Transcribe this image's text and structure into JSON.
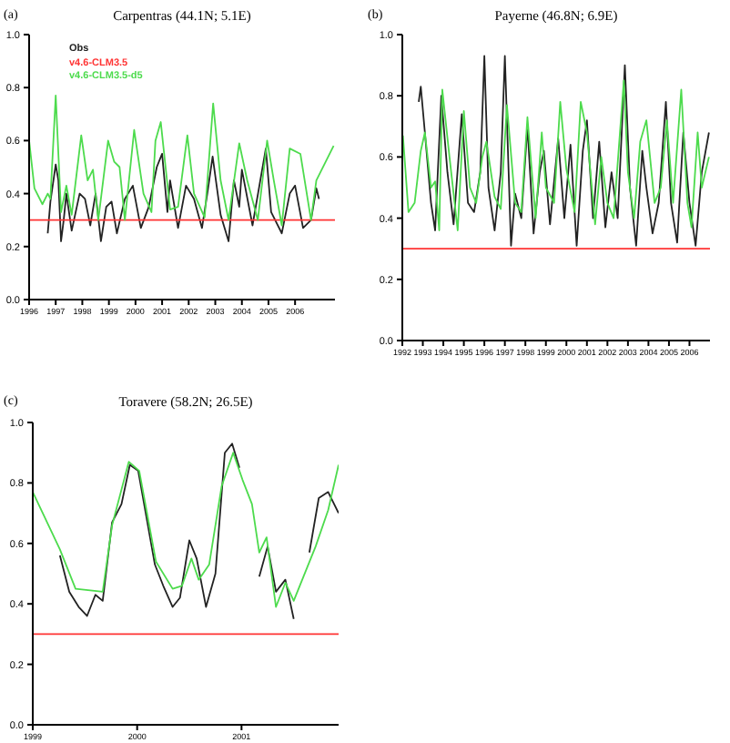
{
  "chart_data": [
    {
      "type": "line",
      "title": "Carpentras (44.1N; 5.1E)",
      "annotations": [
        "(a)"
      ],
      "legend": "top left",
      "xlim": [
        1996,
        2007.5
      ],
      "xticks": [
        1996,
        1997,
        1998,
        1999,
        2000,
        2001,
        2002,
        2003,
        2004,
        2005,
        2006
      ],
      "ylim": [
        0,
        1
      ],
      "yticks": [
        {
          "value": 0,
          "label": "0.0"
        },
        {
          "value": 0.2,
          "label": "0.2"
        },
        {
          "value": 0.4,
          "label": "0.4"
        },
        {
          "value": 0.6,
          "label": "0.6"
        },
        {
          "value": 0.8,
          "label": "0.8"
        },
        {
          "value": 1,
          "label": "1.0"
        }
      ],
      "series": [
        {
          "name": "Obs",
          "color": "#222222",
          "x": [
            1996.7,
            1996.8,
            1997.0,
            1997.1,
            1997.2,
            1997.3,
            1997.4,
            1997.6,
            1997.9,
            1998.1,
            1998.3,
            1998.5,
            1998.7,
            1998.9,
            1999.1,
            1999.3,
            1999.6,
            1999.9,
            2000.2,
            2000.5,
            2000.8,
            2001.0,
            2001.2,
            2001.3,
            2001.6,
            2001.9,
            2002.2,
            2002.5,
            2002.7,
            2002.9,
            2003.2,
            2003.5,
            2003.7,
            2003.9,
            2004.0,
            2004.4,
            2004.9,
            2005.1,
            2005.5,
            2005.8,
            2006.0,
            2006.3,
            2006.6,
            2006.8,
            2006.9
          ],
          "values": [
            0.25,
            0.37,
            0.51,
            0.45,
            0.22,
            0.3,
            0.4,
            0.26,
            0.4,
            0.38,
            0.28,
            0.4,
            0.22,
            0.35,
            0.37,
            0.25,
            0.38,
            0.43,
            0.27,
            0.35,
            0.5,
            0.55,
            0.33,
            0.45,
            0.27,
            0.43,
            0.38,
            0.27,
            0.4,
            0.54,
            0.32,
            0.22,
            0.45,
            0.35,
            0.49,
            0.28,
            0.57,
            0.33,
            0.25,
            0.4,
            0.43,
            0.27,
            0.3,
            0.42,
            0.38
          ]
        },
        {
          "name": "v4.6-CLM3.5",
          "color": "#ff3333",
          "x": [
            1996,
            2007.5
          ],
          "values": [
            0.3,
            0.3
          ]
        },
        {
          "name": "v4.6-CLM3.5-d5",
          "color": "#4ddb4d",
          "x": [
            1996.0,
            1996.2,
            1996.5,
            1996.7,
            1996.8,
            1997.0,
            1997.2,
            1997.4,
            1997.6,
            1997.96,
            1998.2,
            1998.4,
            1998.6,
            1998.97,
            1999.2,
            1999.4,
            1999.6,
            1999.95,
            2000.3,
            2000.6,
            2000.75,
            2000.95,
            2001.3,
            2001.6,
            2001.95,
            2002.2,
            2002.6,
            2002.92,
            2003.2,
            2003.5,
            2003.9,
            2004.2,
            2004.6,
            2004.95,
            2005.2,
            2005.5,
            2005.8,
            2006.2,
            2006.6,
            2006.8,
            2007.45
          ],
          "values": [
            0.6,
            0.42,
            0.36,
            0.4,
            0.38,
            0.77,
            0.33,
            0.43,
            0.32,
            0.62,
            0.45,
            0.49,
            0.3,
            0.6,
            0.52,
            0.5,
            0.3,
            0.64,
            0.4,
            0.33,
            0.6,
            0.67,
            0.34,
            0.35,
            0.62,
            0.4,
            0.31,
            0.74,
            0.45,
            0.3,
            0.59,
            0.45,
            0.3,
            0.6,
            0.45,
            0.28,
            0.57,
            0.55,
            0.3,
            0.45,
            0.58
          ]
        }
      ]
    },
    {
      "type": "line",
      "title": "Payerne (46.8N; 6.9E)",
      "annotations": [
        "(b)"
      ],
      "xlim": [
        1992,
        2007
      ],
      "xticks": [
        1992,
        1993,
        1994,
        1995,
        1996,
        1997,
        1998,
        1999,
        2000,
        2001,
        2002,
        2003,
        2004,
        2005,
        2006
      ],
      "ylim": [
        0,
        1
      ],
      "yticks": [
        {
          "value": 0,
          "label": "0.0"
        },
        {
          "value": 0.2,
          "label": "0.2"
        },
        {
          "value": 0.4,
          "label": "0.4"
        },
        {
          "value": 0.6,
          "label": "0.6"
        },
        {
          "value": 0.8,
          "label": "0.8"
        },
        {
          "value": 1,
          "label": "1.0"
        }
      ],
      "series": [
        {
          "color": "#222222",
          "x": [
            1992.8,
            1992.9,
            1993.1,
            1993.4,
            1993.6,
            1993.9,
            1994.2,
            1994.5,
            1994.9,
            1995.2,
            1995.5,
            1995.8,
            1996.0,
            1996.2,
            1996.5,
            1996.8,
            1997.0,
            1997.3,
            1997.5,
            1997.8,
            1998.1,
            1998.4,
            1998.7,
            1998.9,
            1999.2,
            1999.6,
            1999.9,
            2000.2,
            2000.5,
            2000.8,
            2001.0,
            2001.3,
            2001.6,
            2001.9,
            2002.2,
            2002.5,
            2002.85,
            2003.1,
            2003.4,
            2003.7,
            2003.9,
            2004.2,
            2004.5,
            2004.85,
            2005.1,
            2005.4,
            2005.7,
            2006.0,
            2006.3,
            2006.6,
            2006.95
          ],
          "values": [
            0.78,
            0.83,
            0.68,
            0.45,
            0.36,
            0.8,
            0.55,
            0.38,
            0.74,
            0.45,
            0.42,
            0.55,
            0.93,
            0.5,
            0.36,
            0.55,
            0.93,
            0.31,
            0.48,
            0.4,
            0.7,
            0.35,
            0.55,
            0.62,
            0.38,
            0.66,
            0.4,
            0.64,
            0.31,
            0.62,
            0.72,
            0.4,
            0.65,
            0.37,
            0.55,
            0.4,
            0.9,
            0.5,
            0.31,
            0.62,
            0.5,
            0.35,
            0.45,
            0.78,
            0.45,
            0.32,
            0.68,
            0.45,
            0.31,
            0.55,
            0.68
          ]
        },
        {
          "color": "#ff3333",
          "x": [
            1992,
            2007
          ],
          "values": [
            0.3,
            0.3
          ]
        },
        {
          "color": "#4ddb4d",
          "x": [
            1992.03,
            1992.3,
            1992.6,
            1992.9,
            1993.1,
            1993.4,
            1993.6,
            1993.8,
            1993.95,
            1994.3,
            1994.7,
            1995.0,
            1995.3,
            1995.6,
            1995.9,
            1996.1,
            1996.5,
            1996.8,
            1997.1,
            1997.5,
            1997.8,
            1998.1,
            1998.5,
            1998.8,
            1999.0,
            1999.4,
            1999.7,
            2000.0,
            2000.4,
            2000.7,
            2001.0,
            2001.4,
            2001.7,
            2002.0,
            2002.3,
            2002.8,
            2003.0,
            2003.3,
            2003.6,
            2003.9,
            2004.3,
            2004.6,
            2004.9,
            2005.2,
            2005.6,
            2005.9,
            2006.1,
            2006.4,
            2006.6,
            2006.95
          ],
          "values": [
            0.67,
            0.42,
            0.45,
            0.62,
            0.68,
            0.5,
            0.52,
            0.36,
            0.82,
            0.6,
            0.36,
            0.75,
            0.5,
            0.45,
            0.6,
            0.65,
            0.47,
            0.43,
            0.77,
            0.45,
            0.42,
            0.73,
            0.4,
            0.68,
            0.5,
            0.45,
            0.78,
            0.56,
            0.42,
            0.78,
            0.68,
            0.38,
            0.6,
            0.45,
            0.4,
            0.85,
            0.55,
            0.4,
            0.65,
            0.72,
            0.45,
            0.5,
            0.72,
            0.45,
            0.82,
            0.45,
            0.37,
            0.68,
            0.5,
            0.6
          ]
        }
      ]
    },
    {
      "type": "line",
      "title": "Toravere (58.2N; 26.5E)",
      "annotations": [
        "(c)"
      ],
      "xlim": [
        1999,
        2001.93
      ],
      "xticks": [
        1999,
        2000,
        2001
      ],
      "ylim": [
        0,
        1
      ],
      "yticks": [
        {
          "value": 0,
          "label": "0.0"
        },
        {
          "value": 0.2,
          "label": "0.2"
        },
        {
          "value": 0.4,
          "label": "0.4"
        },
        {
          "value": 0.6,
          "label": "0.6"
        },
        {
          "value": 0.8,
          "label": "0.8"
        },
        {
          "value": 1,
          "label": "1.0"
        }
      ],
      "series": [
        {
          "color": "#222222",
          "x": [
            1999.26,
            1999.35,
            1999.44,
            1999.52,
            1999.6,
            1999.67,
            1999.76,
            1999.85,
            1999.93,
            2000.01,
            2000.17,
            2000.25,
            2000.34,
            2000.41,
            2000.5,
            2000.57,
            2000.66,
            2000.75,
            2000.84,
            2000.91,
            2000.98,
            2001.1,
            2001.17,
            2001.25,
            2001.33,
            2001.42,
            2001.5,
            2001.6,
            2001.65,
            2001.74,
            2001.83,
            2001.93
          ],
          "values": [
            0.56,
            0.44,
            0.39,
            0.36,
            0.43,
            0.41,
            0.67,
            0.73,
            0.86,
            0.84,
            0.53,
            0.46,
            0.39,
            0.42,
            0.61,
            0.55,
            0.39,
            0.5,
            0.9,
            0.93,
            0.85,
            null,
            0.49,
            0.59,
            0.44,
            0.48,
            0.35,
            null,
            0.57,
            0.75,
            0.77,
            0.7
          ]
        },
        {
          "color": "#ff3333",
          "x": [
            1999,
            2001.93
          ],
          "values": [
            0.3,
            0.3
          ]
        },
        {
          "color": "#4ddb4d",
          "x": [
            1999.0,
            1999.26,
            1999.41,
            1999.67,
            1999.76,
            1999.92,
            2000.02,
            2000.18,
            2000.34,
            2000.43,
            2000.52,
            2000.59,
            2000.69,
            2000.81,
            2000.92,
            2001.01,
            2001.1,
            2001.17,
            2001.24,
            2001.33,
            2001.42,
            2001.5,
            2001.71,
            2001.83,
            2001.93
          ],
          "values": [
            0.77,
            0.58,
            0.45,
            0.44,
            0.66,
            0.87,
            0.84,
            0.54,
            0.45,
            0.46,
            0.55,
            0.48,
            0.53,
            0.79,
            0.9,
            0.81,
            0.73,
            0.57,
            0.62,
            0.39,
            0.47,
            0.41,
            0.59,
            0.71,
            0.86
          ]
        }
      ]
    }
  ]
}
